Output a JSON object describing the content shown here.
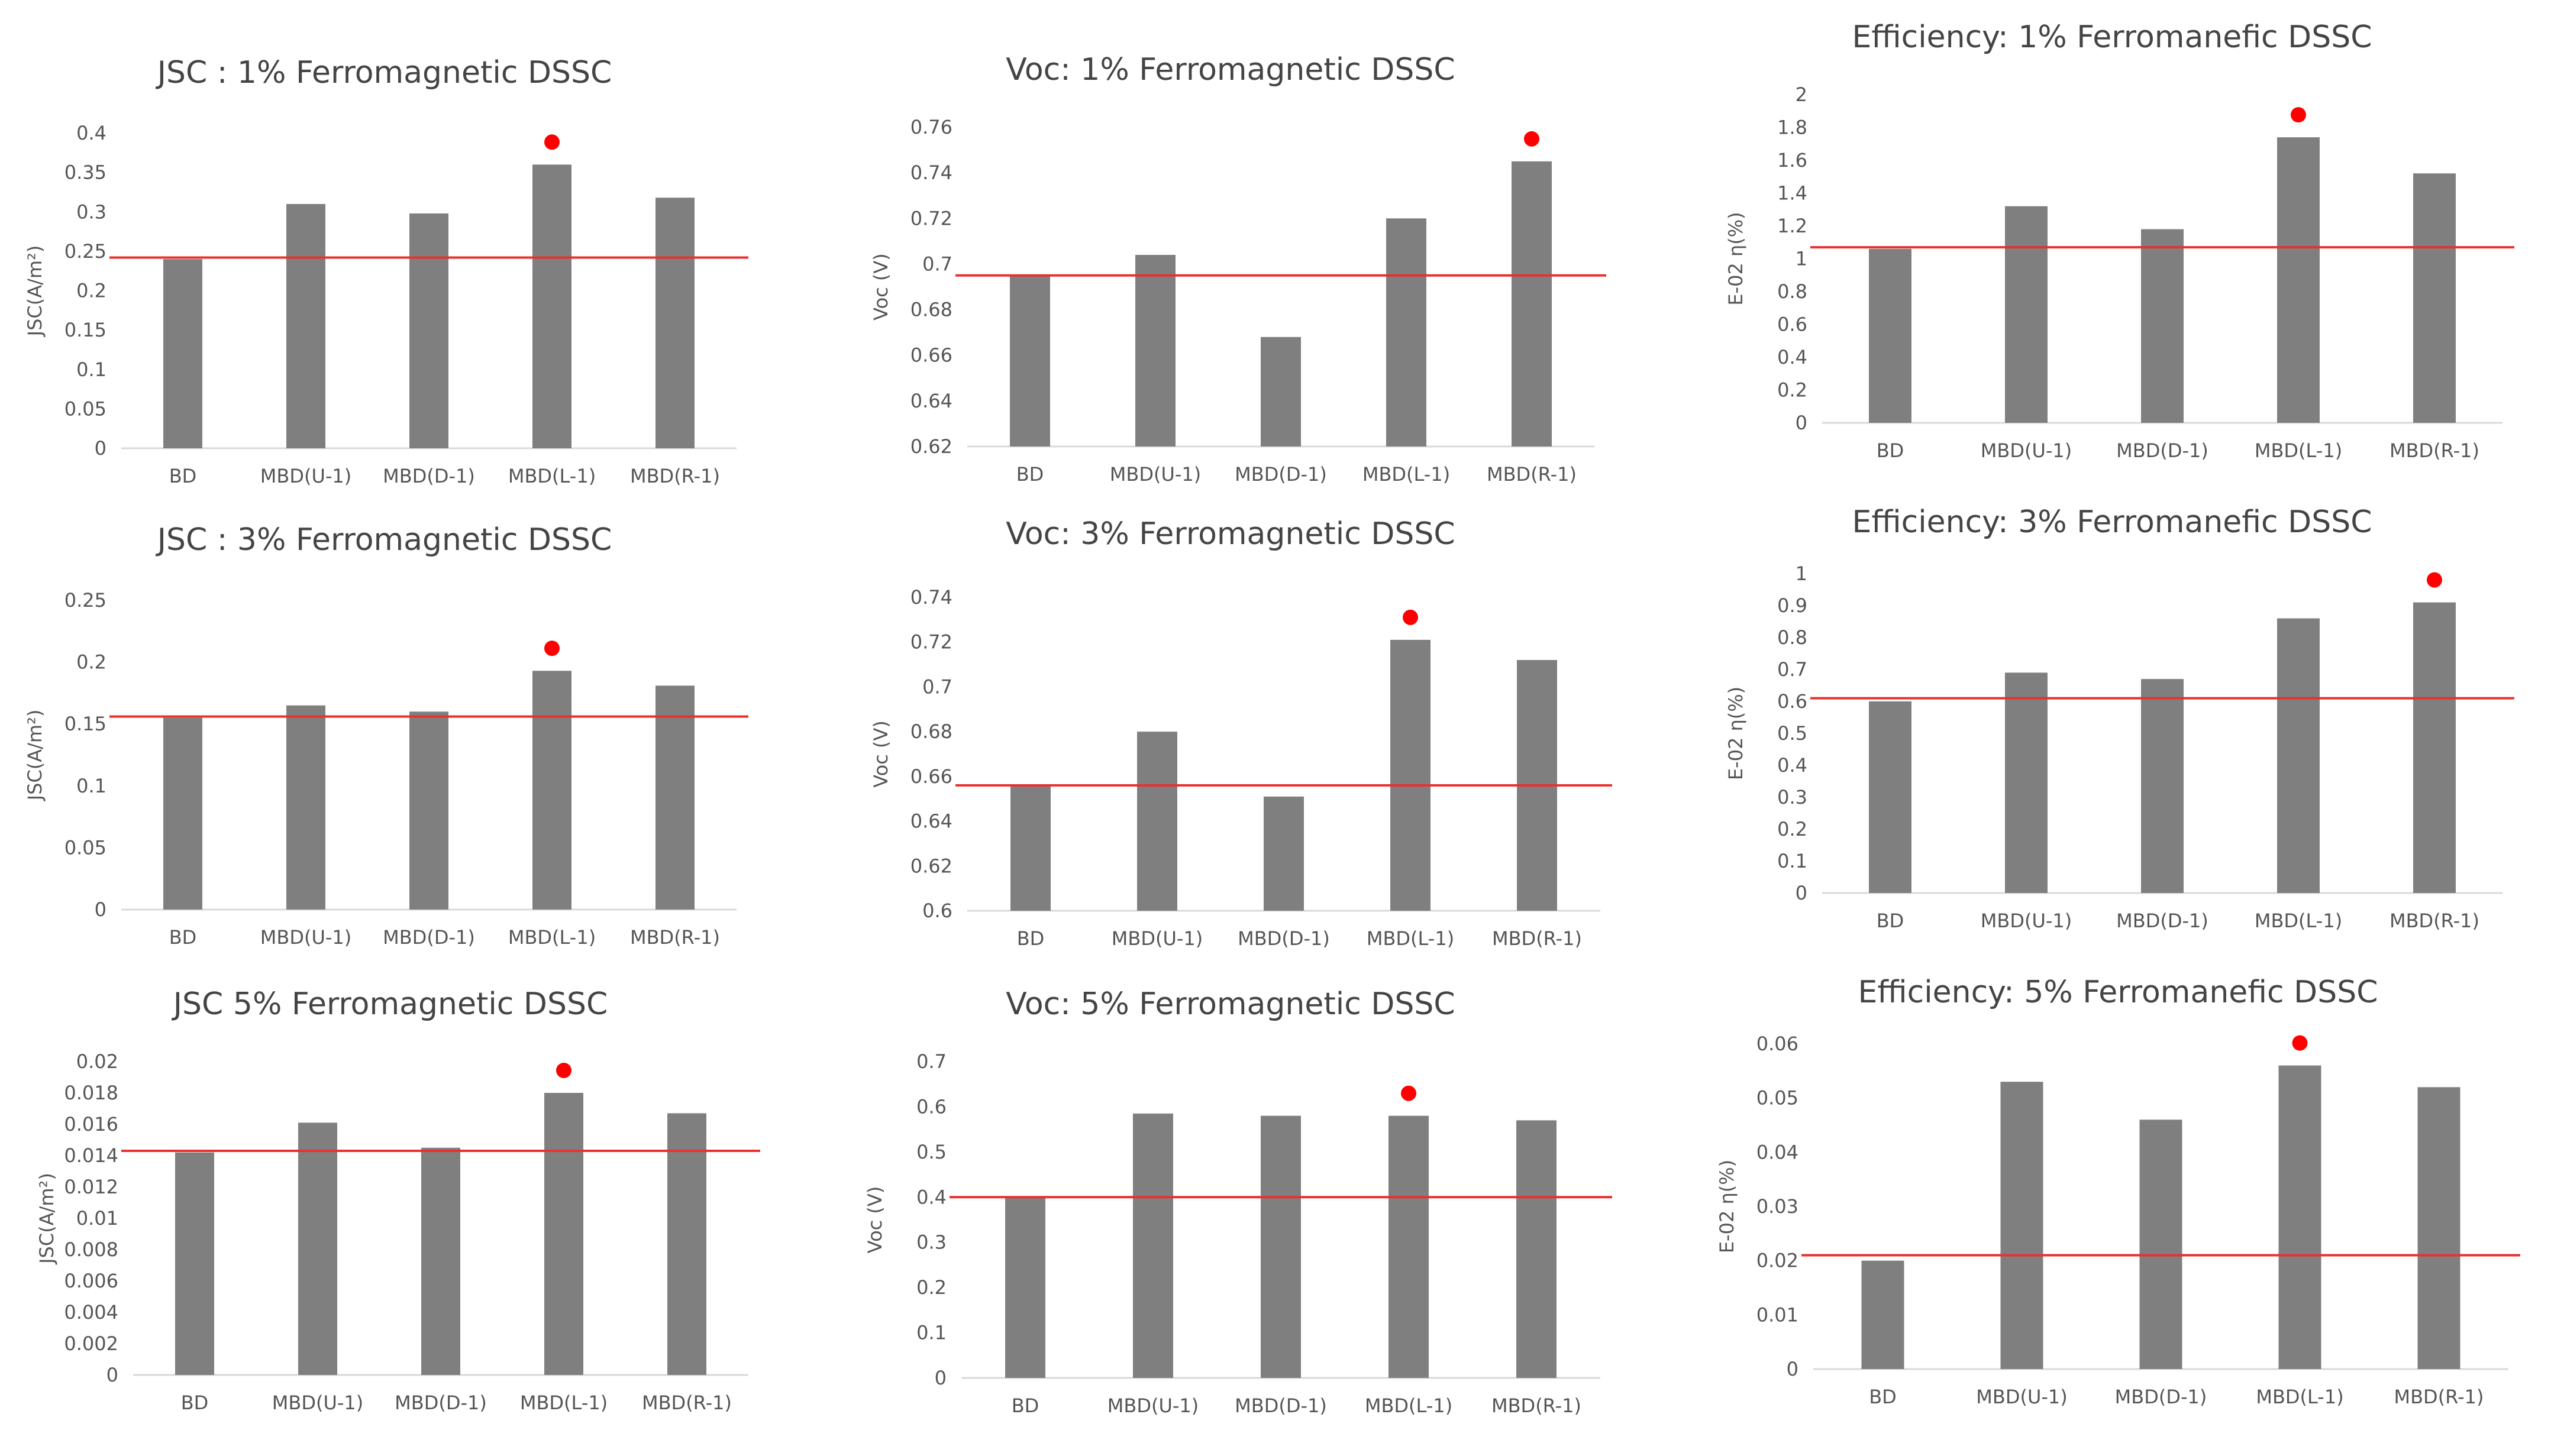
{
  "colors": {
    "bar": "#7f7f7f",
    "refline": "#e8312f",
    "marker": "#ff0000",
    "axis": "#d9d9d9"
  },
  "categories": [
    "BD",
    "MBD(U-1)",
    "MBD(D-1)",
    "MBD(L-1)",
    "MBD(R-1)"
  ],
  "chart_data": [
    {
      "type": "bar",
      "title": "JSC : 1% Ferromagnetic DSSC",
      "ylabel": "JSC(A/m²)",
      "ylim": [
        0,
        0.4
      ],
      "yticks": [
        0,
        0.05,
        0.1,
        0.15,
        0.2,
        0.25,
        0.3,
        0.35,
        0.4
      ],
      "ytick_labels": [
        "0",
        "0.05",
        "0.1",
        "0.15",
        "0.2",
        "0.25",
        "0.3",
        "0.35",
        "0.4"
      ],
      "categories": [
        "BD",
        "MBD(U-1)",
        "MBD(D-1)",
        "MBD(L-1)",
        "MBD(R-1)"
      ],
      "values": [
        0.24,
        0.31,
        0.298,
        0.36,
        0.318
      ],
      "reference_line": 0.242,
      "highlight_index": 3
    },
    {
      "type": "bar",
      "title": "Voc: 1% Ferromagnetic DSSC",
      "ylabel": "Voc (V)",
      "ylim": [
        0.62,
        0.76
      ],
      "yticks": [
        0.62,
        0.64,
        0.66,
        0.68,
        0.7,
        0.72,
        0.74,
        0.76
      ],
      "ytick_labels": [
        "0.62",
        "0.64",
        "0.66",
        "0.68",
        "0.7",
        "0.72",
        "0.74",
        "0.76"
      ],
      "categories": [
        "BD",
        "MBD(U-1)",
        "MBD(D-1)",
        "MBD(L-1)",
        "MBD(R-1)"
      ],
      "values": [
        0.695,
        0.704,
        0.668,
        0.72,
        0.745
      ],
      "reference_line": 0.695,
      "highlight_index": 4
    },
    {
      "type": "bar",
      "title": "Efficiency: 1% Ferromanefic DSSC",
      "ylabel": "E-02 η(%)",
      "ylim": [
        0,
        2
      ],
      "yticks": [
        0,
        0.2,
        0.4,
        0.6,
        0.8,
        1,
        1.2,
        1.4,
        1.6,
        1.8,
        2
      ],
      "ytick_labels": [
        "0",
        "0.2",
        "0.4",
        "0.6",
        "0.8",
        "1",
        "1.2",
        "1.4",
        "1.6",
        "1.8",
        "2"
      ],
      "categories": [
        "BD",
        "MBD(U-1)",
        "MBD(D-1)",
        "MBD(L-1)",
        "MBD(R-1)"
      ],
      "values": [
        1.06,
        1.32,
        1.18,
        1.74,
        1.52
      ],
      "reference_line": 1.07,
      "highlight_index": 3
    },
    {
      "type": "bar",
      "title": "JSC : 3% Ferromagnetic DSSC",
      "ylabel": "JSC(A/m²)",
      "ylim": [
        0,
        0.25
      ],
      "yticks": [
        0,
        0.05,
        0.1,
        0.15,
        0.2,
        0.25
      ],
      "ytick_labels": [
        "0",
        "0.05",
        "0.1",
        "0.15",
        "0.2",
        "0.25"
      ],
      "categories": [
        "BD",
        "MBD(U-1)",
        "MBD(D-1)",
        "MBD(L-1)",
        "MBD(R-1)"
      ],
      "values": [
        0.155,
        0.165,
        0.16,
        0.193,
        0.181
      ],
      "reference_line": 0.156,
      "highlight_index": 3
    },
    {
      "type": "bar",
      "title": "Voc: 3% Ferromagnetic DSSC",
      "ylabel": "Voc (V)",
      "ylim": [
        0.6,
        0.74
      ],
      "yticks": [
        0.6,
        0.62,
        0.64,
        0.66,
        0.68,
        0.7,
        0.72,
        0.74
      ],
      "ytick_labels": [
        "0.6",
        "0.62",
        "0.64",
        "0.66",
        "0.68",
        "0.7",
        "0.72",
        "0.74"
      ],
      "categories": [
        "BD",
        "MBD(U-1)",
        "MBD(D-1)",
        "MBD(L-1)",
        "MBD(R-1)"
      ],
      "values": [
        0.656,
        0.68,
        0.651,
        0.721,
        0.712
      ],
      "reference_line": 0.656,
      "highlight_index": 3
    },
    {
      "type": "bar",
      "title": "Efficiency: 3% Ferromanefic DSSC",
      "ylabel": "E-02 η(%)",
      "ylim": [
        0,
        1
      ],
      "yticks": [
        0,
        0.1,
        0.2,
        0.3,
        0.4,
        0.5,
        0.6,
        0.7,
        0.8,
        0.9,
        1
      ],
      "ytick_labels": [
        "0",
        "0.1",
        "0.2",
        "0.3",
        "0.4",
        "0.5",
        "0.6",
        "0.7",
        "0.8",
        "0.9",
        "1"
      ],
      "categories": [
        "BD",
        "MBD(U-1)",
        "MBD(D-1)",
        "MBD(L-1)",
        "MBD(R-1)"
      ],
      "values": [
        0.6,
        0.69,
        0.67,
        0.86,
        0.91
      ],
      "reference_line": 0.61,
      "highlight_index": 4
    },
    {
      "type": "bar",
      "title": "JSC 5% Ferromagnetic DSSC",
      "ylabel": "JSC(A/m²)",
      "ylim": [
        0,
        0.02
      ],
      "yticks": [
        0,
        0.002,
        0.004,
        0.006,
        0.008,
        0.01,
        0.012,
        0.014,
        0.016,
        0.018,
        0.02
      ],
      "ytick_labels": [
        "0",
        "0.002",
        "0.004",
        "0.006",
        "0.008",
        "0.01",
        "0.012",
        "0.014",
        "0.016",
        "0.018",
        "0.02"
      ],
      "categories": [
        "BD",
        "MBD(U-1)",
        "MBD(D-1)",
        "MBD(L-1)",
        "MBD(R-1)"
      ],
      "values": [
        0.0142,
        0.0161,
        0.0145,
        0.018,
        0.0167
      ],
      "reference_line": 0.0143,
      "highlight_index": 3
    },
    {
      "type": "bar",
      "title": "Voc: 5% Ferromagnetic DSSC",
      "ylabel": "Voc (V)",
      "ylim": [
        0,
        0.7
      ],
      "yticks": [
        0,
        0.1,
        0.2,
        0.3,
        0.4,
        0.5,
        0.6,
        0.7
      ],
      "ytick_labels": [
        "0",
        "0.1",
        "0.2",
        "0.3",
        "0.4",
        "0.5",
        "0.6",
        "0.7"
      ],
      "categories": [
        "BD",
        "MBD(U-1)",
        "MBD(D-1)",
        "MBD(L-1)",
        "MBD(R-1)"
      ],
      "values": [
        0.4,
        0.585,
        0.58,
        0.58,
        0.57
      ],
      "reference_line": 0.4,
      "highlight_index": 3
    },
    {
      "type": "bar",
      "title": "Efficiency: 5% Ferromanefic DSSC",
      "ylabel": "E-02 η(%)",
      "ylim": [
        0,
        0.06
      ],
      "yticks": [
        0,
        0.01,
        0.02,
        0.03,
        0.04,
        0.05,
        0.06
      ],
      "ytick_labels": [
        "0",
        "0.01",
        "0.02",
        "0.03",
        "0.04",
        "0.05",
        "0.06"
      ],
      "categories": [
        "BD",
        "MBD(U-1)",
        "MBD(D-1)",
        "MBD(L-1)",
        "MBD(R-1)"
      ],
      "values": [
        0.02,
        0.053,
        0.046,
        0.056,
        0.052
      ],
      "reference_line": 0.021,
      "highlight_index": 3
    }
  ]
}
